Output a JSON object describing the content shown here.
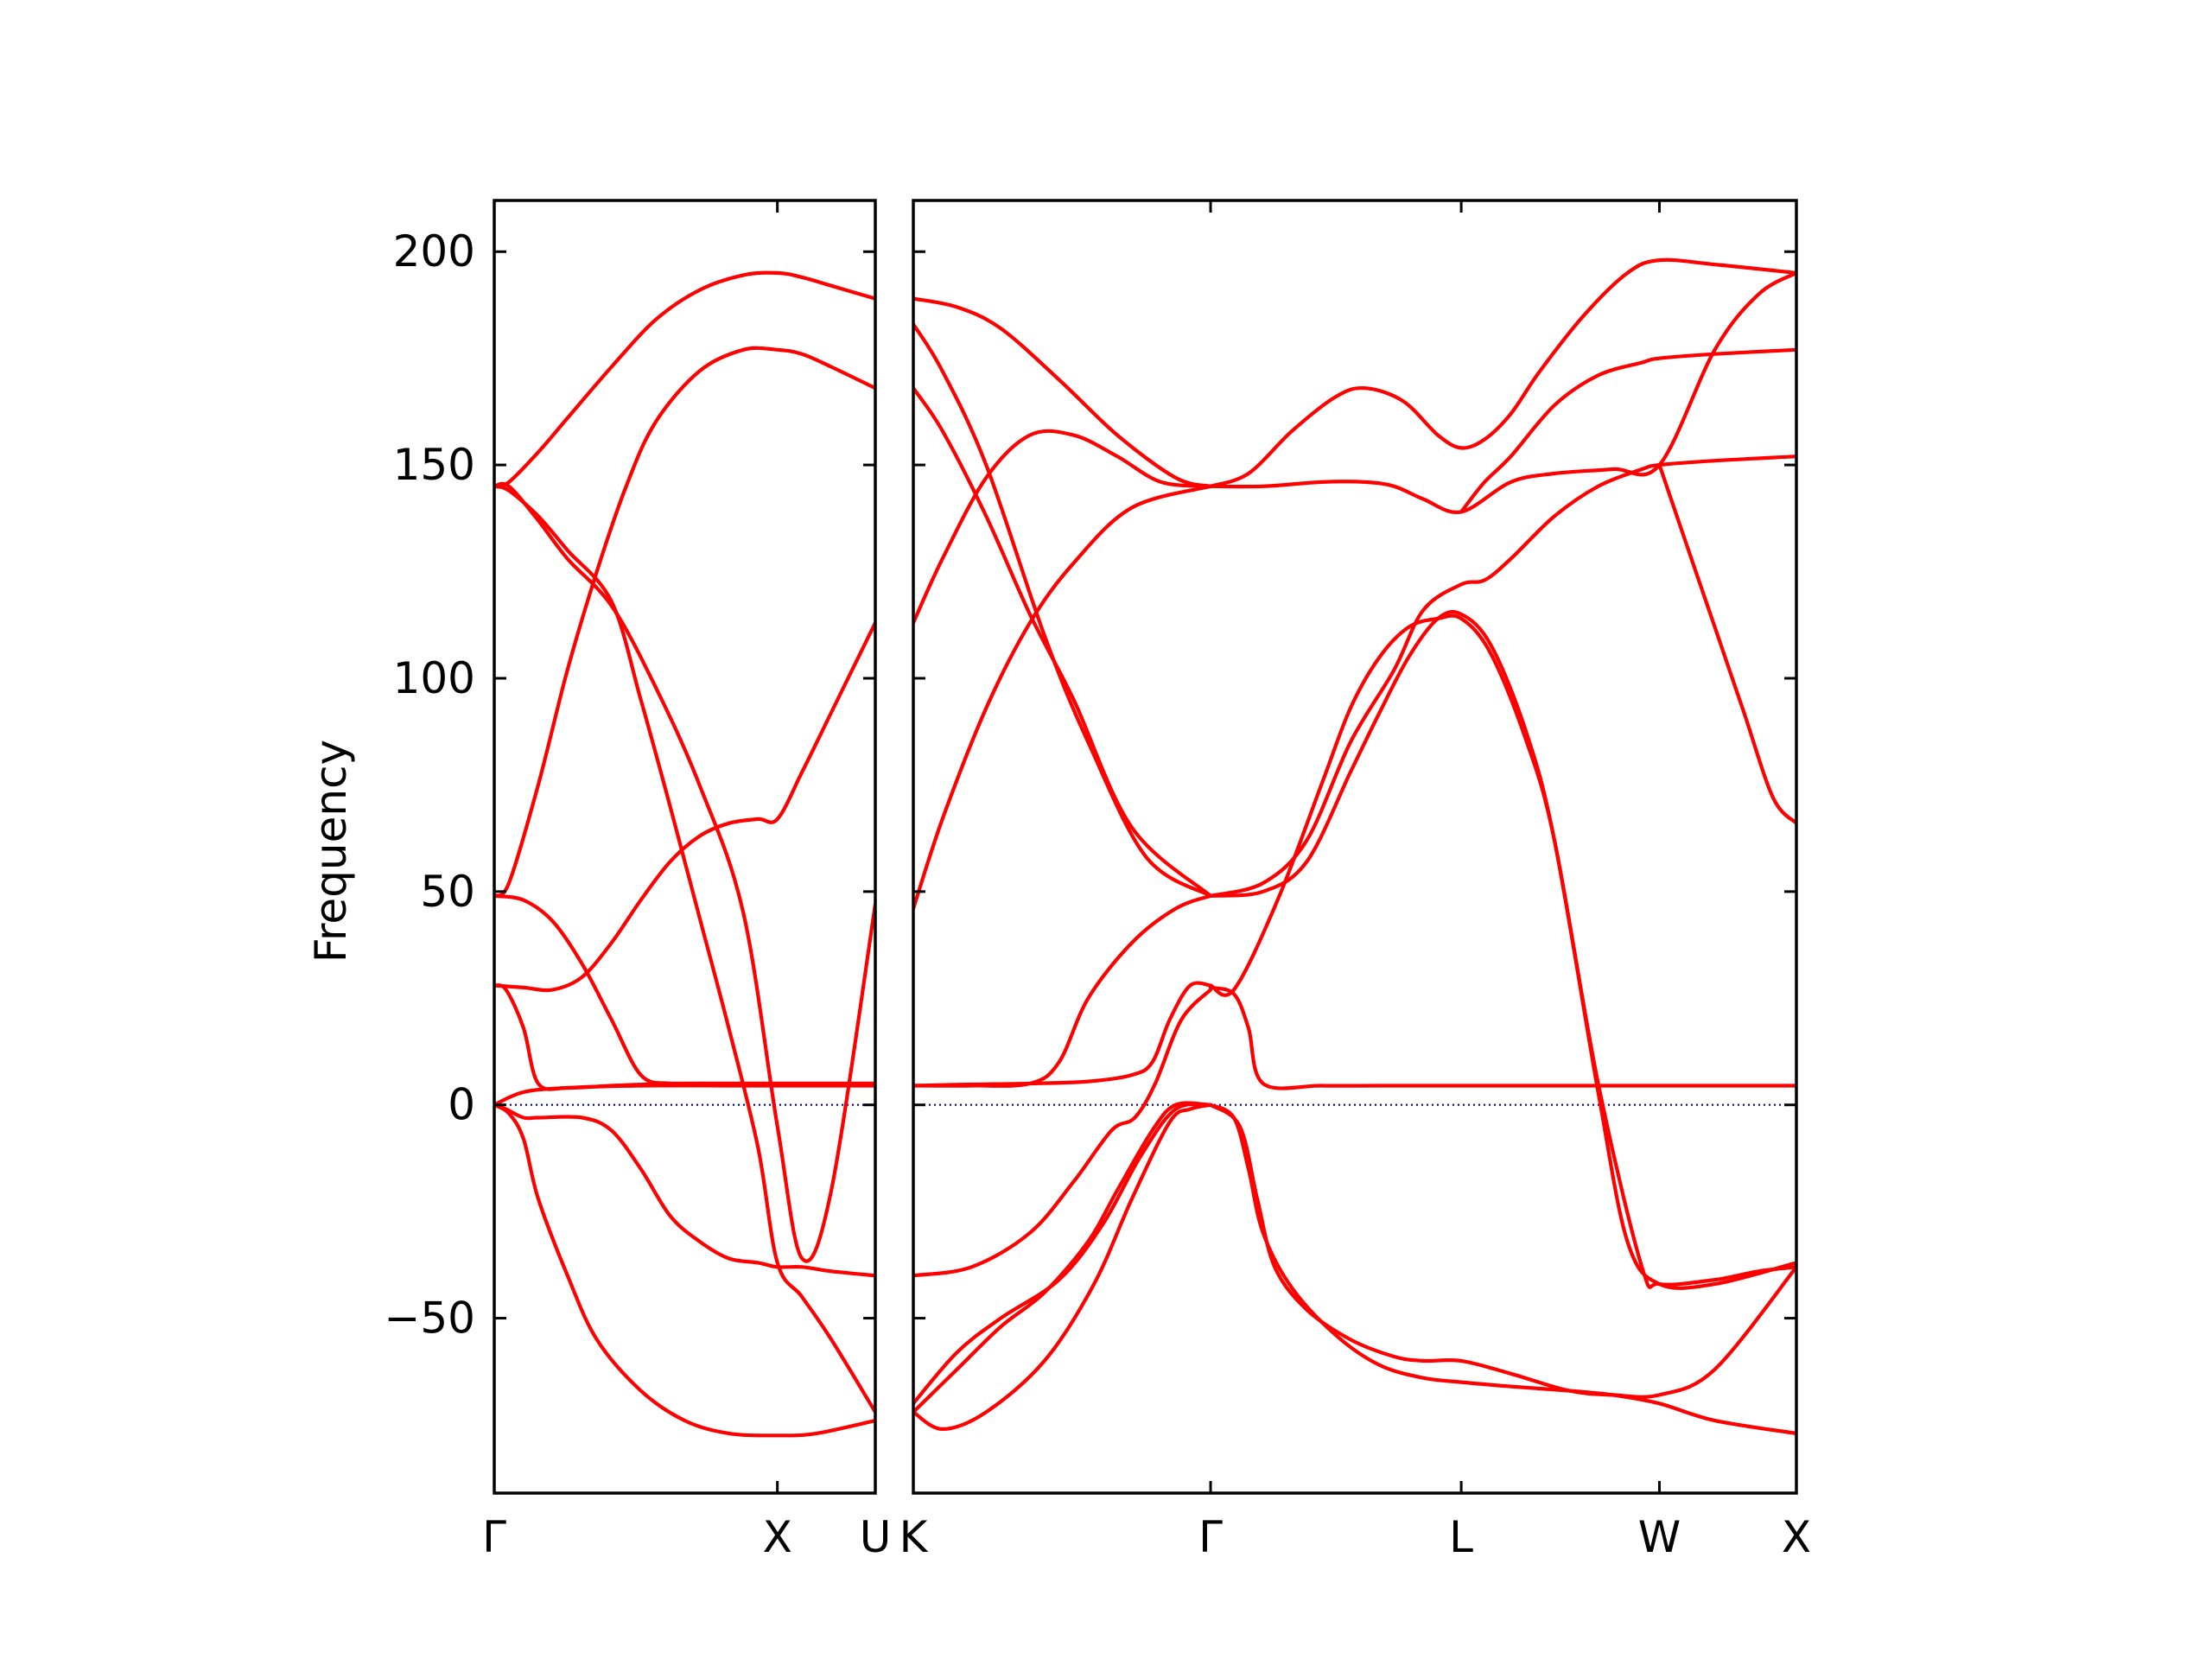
{
  "chart_data": {
    "type": "line",
    "ylabel": "Frequency",
    "ylim": [
      -91,
      212
    ],
    "yticks": [
      -50,
      0,
      50,
      100,
      150,
      200
    ],
    "yticklabels": [
      "−50",
      "0",
      "50",
      "100",
      "150",
      "200"
    ],
    "grid": false,
    "colors": {
      "band": "#ff0000",
      "zero_line": "#00008b"
    },
    "panels": [
      {
        "xlim": [
          0,
          1.3
        ],
        "xticks": [
          0,
          0.966,
          1.3
        ],
        "xticklabels": [
          "Γ",
          "X",
          "U"
        ],
        "series": [
          {
            "x": [
              0,
              0.05,
              0.15,
              0.25,
              0.4,
              0.55,
              0.7,
              0.85,
              0.966,
              1.05,
              1.15,
              1.3
            ],
            "y": [
              145,
              146,
              153,
              161,
              173,
              184,
              191,
              194.5,
              195,
              194,
              192,
              189
            ]
          },
          {
            "x": [
              0,
              0.05,
              0.15,
              0.25,
              0.4,
              0.5,
              0.6,
              0.7,
              0.8,
              0.9,
              0.966,
              1.05,
              1.15,
              1.3
            ],
            "y": [
              145,
              144,
              138,
              130,
              118,
              95,
              70,
              44,
              18,
              -10,
              -37,
              -45,
              -55,
              -72
            ]
          },
          {
            "x": [
              0,
              0.05,
              0.15,
              0.25,
              0.4,
              0.55,
              0.7,
              0.85,
              0.966,
              1.05,
              1.15,
              1.3
            ],
            "y": [
              145,
              145,
              137,
              128,
              117,
              98,
              75,
              45,
              -5,
              -36,
              -20,
              47
            ]
          },
          {
            "x": [
              0,
              0.05,
              0.15,
              0.25,
              0.35,
              0.45,
              0.55,
              0.7,
              0.85,
              0.966,
              1.05,
              1.15,
              1.3
            ],
            "y": [
              49,
              52,
              75,
              102,
              125,
              145,
              160,
              172,
              177,
              177,
              176,
              173,
              168
            ]
          },
          {
            "x": [
              0,
              0.1,
              0.2,
              0.3,
              0.4,
              0.5,
              0.6,
              0.7,
              0.8,
              0.9,
              0.966,
              1.05,
              1.15,
              1.3
            ],
            "y": [
              49,
              48,
              43,
              33,
              20,
              7,
              5,
              5,
              5,
              5,
              5,
              5,
              5,
              5
            ]
          },
          {
            "x": [
              0,
              0.1,
              0.2,
              0.3,
              0.4,
              0.5,
              0.6,
              0.7,
              0.8,
              0.9,
              0.966,
              1.05,
              1.15,
              1.3
            ],
            "y": [
              28,
              27.5,
              27,
              30,
              38,
              48,
              57,
              63,
              66,
              67,
              67,
              78,
              92,
              113
            ]
          },
          {
            "x": [
              0,
              0.04,
              0.1,
              0.15,
              0.25,
              0.4,
              0.6,
              0.8,
              0.966,
              1.1,
              1.3
            ],
            "y": [
              28,
              27,
              18,
              5,
              4,
              4.5,
              5,
              5,
              5,
              5,
              5
            ]
          },
          {
            "x": [
              0,
              0.04,
              0.1,
              0.15,
              0.3,
              0.4,
              0.5,
              0.6,
              0.7,
              0.8,
              0.9,
              0.966,
              1.05,
              1.15,
              1.3
            ],
            "y": [
              0,
              -1,
              -3,
              -3,
              -3,
              -6,
              -15,
              -26,
              -32,
              -36,
              -37,
              -38,
              -38,
              -39,
              -40
            ]
          },
          {
            "x": [
              0,
              0.05,
              0.1,
              0.15,
              0.25,
              0.35,
              0.5,
              0.65,
              0.8,
              0.966,
              1.1,
              1.3
            ],
            "y": [
              0,
              -2,
              -8,
              -22,
              -40,
              -55,
              -67,
              -74,
              -77,
              -77.5,
              -77,
              -74
            ]
          },
          {
            "x": [
              0,
              0.1,
              0.25,
              0.5,
              0.8,
              0.966,
              1.1,
              1.3
            ],
            "y": [
              0,
              3,
              4,
              4.5,
              4.5,
              4.5,
              4.5,
              4.5
            ]
          }
        ]
      },
      {
        "xlim": [
          0,
          3.03
        ],
        "xticks": [
          0,
          1.02,
          1.88,
          2.56,
          3.03
        ],
        "xticklabels": [
          "K",
          "Γ",
          "L",
          "W",
          "X"
        ],
        "series": [
          {
            "x": [
              0,
              0.15,
              0.3,
              0.5,
              0.7,
              0.9,
              1.02
            ],
            "y": [
              189,
              187,
              182,
              170,
              157,
              147,
              145
            ]
          },
          {
            "x": [
              0,
              0.1,
              0.25,
              0.45,
              0.6,
              0.8,
              1.02
            ],
            "y": [
              183,
              172,
              150,
              110,
              85,
              58,
              49
            ]
          },
          {
            "x": [
              0,
              0.1,
              0.25,
              0.4,
              0.55,
              0.75,
              1.02
            ],
            "y": [
              168,
              158,
              138,
              115,
              95,
              65,
              49
            ]
          },
          {
            "x": [
              0,
              0.1,
              0.25,
              0.4,
              0.55,
              0.7,
              0.85,
              1.02
            ],
            "y": [
              113,
              128,
              147,
              157,
              157,
              152,
              146,
              145
            ]
          },
          {
            "x": [
              0,
              0.1,
              0.25,
              0.4,
              0.55,
              0.75,
              1.02
            ],
            "y": [
              46,
              67,
              93,
              113,
              127,
              140,
              145
            ]
          },
          {
            "x": [
              0,
              0.2,
              0.4,
              0.5,
              0.6,
              0.75,
              0.9,
              1.02
            ],
            "y": [
              4.5,
              4.5,
              5,
              10,
              25,
              38,
              46,
              49
            ]
          },
          {
            "x": [
              0,
              0.2,
              0.4,
              0.6,
              0.75,
              0.82,
              0.88,
              0.95,
              1.02
            ],
            "y": [
              4.5,
              4.8,
              5,
              5.5,
              7,
              10,
              20,
              28,
              28
            ]
          },
          {
            "x": [
              0,
              0.2,
              0.4,
              0.55,
              0.68,
              0.76,
              0.83,
              0.92,
              1.02
            ],
            "y": [
              -40,
              -38,
              -30,
              -18,
              -6,
              -3,
              5,
              20,
              27
            ]
          },
          {
            "x": [
              0,
              0.15,
              0.3,
              0.45,
              0.6,
              0.7,
              0.82,
              0.9,
              1.02
            ],
            "y": [
              -72,
              -62,
              -52,
              -44,
              -32,
              -20,
              -6,
              0,
              0
            ]
          },
          {
            "x": [
              0,
              0.15,
              0.3,
              0.5,
              0.65,
              0.78,
              0.9,
              1.02
            ],
            "y": [
              -70,
              -58,
              -50,
              -41,
              -28,
              -12,
              -1,
              0
            ]
          },
          {
            "x": [
              0,
              0.1,
              0.25,
              0.45,
              0.62,
              0.75,
              0.88,
              0.95,
              1.02
            ],
            "y": [
              -72,
              -76,
              -72,
              -60,
              -42,
              -22,
              -4,
              -1,
              0
            ]
          },
          {
            "x": [
              1.02,
              1.1,
              1.15,
              1.2,
              1.4,
              1.6,
              1.88,
              2.2,
              2.56,
              3.03
            ],
            "y": [
              27.5,
              26,
              18,
              5,
              4.5,
              4.5,
              4.5,
              4.5,
              4.5,
              4.5
            ]
          },
          {
            "x": [
              1.02,
              1.12,
              1.18,
              1.24,
              1.35,
              1.5,
              1.65,
              1.75,
              1.88,
              2.05,
              2.25,
              2.4,
              2.56,
              2.75,
              3.03
            ],
            "y": [
              0,
              -5,
              -22,
              -38,
              -48,
              -55,
              -59,
              -60,
              -60,
              -63,
              -67,
              -68,
              -68,
              -62,
              -38
            ]
          },
          {
            "x": [
              1.02,
              1.1,
              1.15,
              1.2,
              1.3,
              1.45,
              1.6,
              1.75,
              1.88,
              2.05,
              2.25,
              2.4,
              2.56,
              2.75,
              3.03
            ],
            "y": [
              0,
              -3,
              -15,
              -30,
              -43,
              -54,
              -61,
              -64,
              -65,
              -66,
              -67,
              -68,
              -70,
              -74,
              -77
            ]
          },
          {
            "x": [
              1.02,
              1.1,
              1.25,
              1.4,
              1.5,
              1.6,
              1.7,
              1.8,
              1.88,
              1.98,
              2.1,
              2.2,
              2.35,
              2.5,
              2.56,
              2.75,
              2.9,
              3.03
            ],
            "y": [
              28,
              27,
              48,
              75,
              93,
              105,
              112,
              114,
              114,
              106,
              86,
              62,
              5,
              -38,
              -42,
              -41,
              -39,
              -38
            ]
          },
          {
            "x": [
              1.02,
              1.2,
              1.35,
              1.5,
              1.6,
              1.7,
              1.8,
              1.88,
              1.98,
              2.1,
              2.2,
              2.35,
              2.45,
              2.56,
              2.75,
              3.03
            ],
            "y": [
              49,
              50,
              57,
              78,
              92,
              105,
              114,
              115,
              108,
              88,
              62,
              3,
              -32,
              -42,
              -42,
              -37
            ]
          },
          {
            "x": [
              1.02,
              1.2,
              1.4,
              1.55,
              1.65,
              1.75,
              1.88,
              2.05,
              2.2,
              2.4,
              2.56,
              2.75,
              2.9,
              3.03
            ],
            "y": [
              145,
              145,
              146,
              146,
              145,
              142,
              139,
              146,
              148,
              149,
              150,
              177,
              190,
              195
            ]
          },
          {
            "x": [
              1.02,
              1.15,
              1.3,
              1.45,
              1.55,
              1.68,
              1.8,
              1.88,
              1.96,
              2.05,
              2.15,
              2.3,
              2.45,
              2.56,
              2.75,
              3.03
            ],
            "y": [
              145,
              148,
              158,
              166,
              168,
              165,
              157,
              154,
              156,
              162,
              172,
              185,
              195,
              198,
              197,
              195
            ]
          },
          {
            "x": [
              1.02,
              1.2,
              1.35,
              1.5,
              1.65,
              1.75,
              1.88,
              1.96,
              2.05,
              2.2,
              2.35,
              2.5,
              2.56,
              2.75,
              3.03
            ],
            "y": [
              49,
              52,
              62,
              85,
              102,
              116,
              122,
              123,
              128,
              138,
              145,
              149,
              150,
              151,
              152
            ]
          },
          {
            "x": [
              1.88,
              1.96,
              2.05,
              2.2,
              2.35,
              2.5,
              2.56,
              2.75,
              3.03
            ],
            "y": [
              139,
              146,
              152,
              164,
              171,
              174,
              175,
              176,
              177
            ]
          },
          {
            "x": [
              2.56,
              2.65,
              2.75,
              2.85,
              2.95,
              3.03
            ],
            "y": [
              150,
              132,
              112,
              92,
              72,
              66
            ]
          }
        ]
      }
    ]
  }
}
